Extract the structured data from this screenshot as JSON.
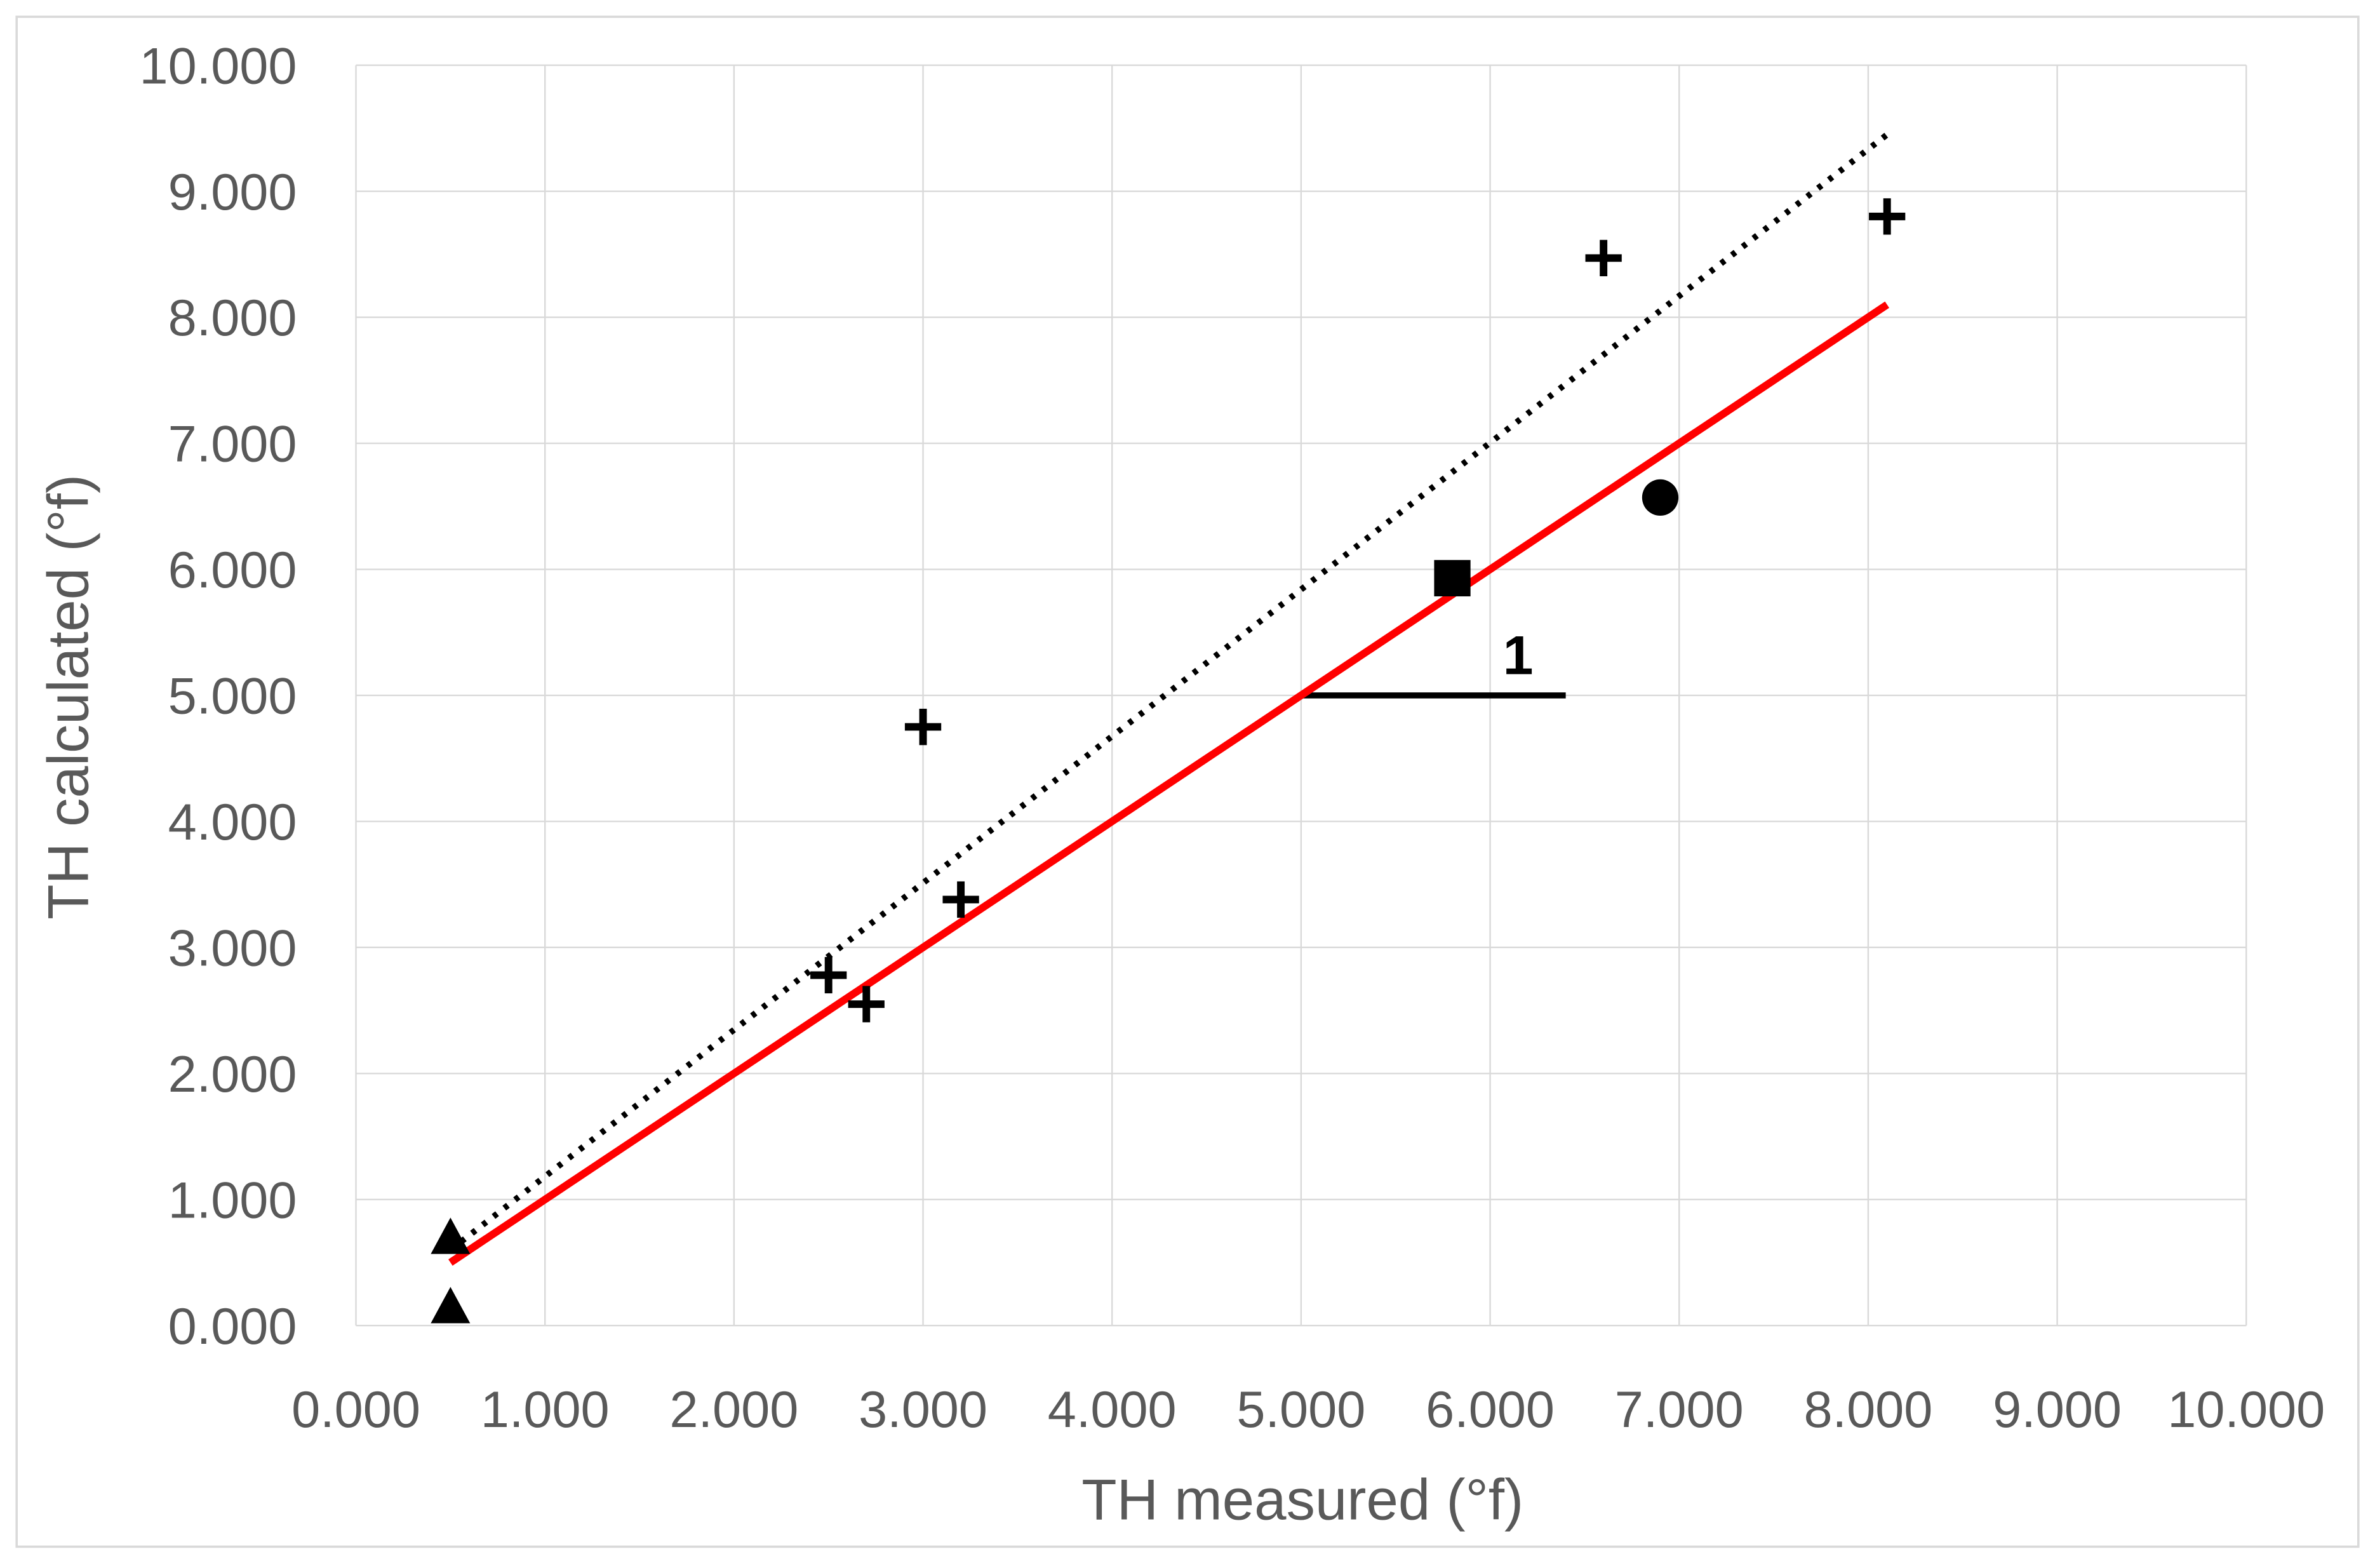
{
  "chart_data": {
    "type": "scatter",
    "x_label": "TH measured  (°f)",
    "y_label": "TH calculated (°f)",
    "xlim": [
      0,
      10
    ],
    "ylim": [
      0,
      10
    ],
    "xticks": [
      {
        "value": 0,
        "label": "0.000"
      },
      {
        "value": 1,
        "label": "1.000"
      },
      {
        "value": 2,
        "label": "2.000"
      },
      {
        "value": 3,
        "label": "3.000"
      },
      {
        "value": 4,
        "label": "4.000"
      },
      {
        "value": 5,
        "label": "5.000"
      },
      {
        "value": 6,
        "label": "6.000"
      },
      {
        "value": 7,
        "label": "7.000"
      },
      {
        "value": 8,
        "label": "8.000"
      },
      {
        "value": 9,
        "label": "9.000"
      },
      {
        "value": 10,
        "label": "10.000"
      }
    ],
    "yticks": [
      {
        "value": 0,
        "label": "0.000"
      },
      {
        "value": 1,
        "label": "1.000"
      },
      {
        "value": 2,
        "label": "2.000"
      },
      {
        "value": 3,
        "label": "3.000"
      },
      {
        "value": 4,
        "label": "4.000"
      },
      {
        "value": 5,
        "label": "5.000"
      },
      {
        "value": 6,
        "label": "6.000"
      },
      {
        "value": 7,
        "label": "7.000"
      },
      {
        "value": 8,
        "label": "8.000"
      },
      {
        "value": 9,
        "label": "9.000"
      },
      {
        "value": 10,
        "label": "10.000"
      }
    ],
    "grid": true,
    "series": [
      {
        "marker": "line",
        "color": "#ff0000",
        "x": [
          0.5,
          8.1
        ],
        "values": [
          0.5,
          8.1
        ]
      },
      {
        "marker": "dotted-line",
        "color": "#000000",
        "x": [
          0.5,
          8.1
        ],
        "values": [
          0.6,
          9.45
        ]
      },
      {
        "marker": "plus",
        "color": "#000000",
        "x": [
          2.5,
          2.7,
          3.0,
          3.2,
          6.6,
          8.1
        ],
        "values": [
          2.78,
          2.55,
          4.75,
          3.38,
          8.47,
          8.8
        ]
      },
      {
        "marker": "triangle",
        "color": "#000000",
        "x": [
          0.5,
          0.5
        ],
        "values": [
          0.7,
          0.15
        ]
      },
      {
        "marker": "square",
        "color": "#000000",
        "x": [
          5.8
        ],
        "values": [
          5.93
        ]
      },
      {
        "marker": "circle",
        "color": "#000000",
        "x": [
          6.9
        ],
        "values": [
          6.57
        ]
      }
    ],
    "annotation": {
      "text": "1",
      "x": [
        5,
        6.4
      ],
      "y": 5
    }
  }
}
